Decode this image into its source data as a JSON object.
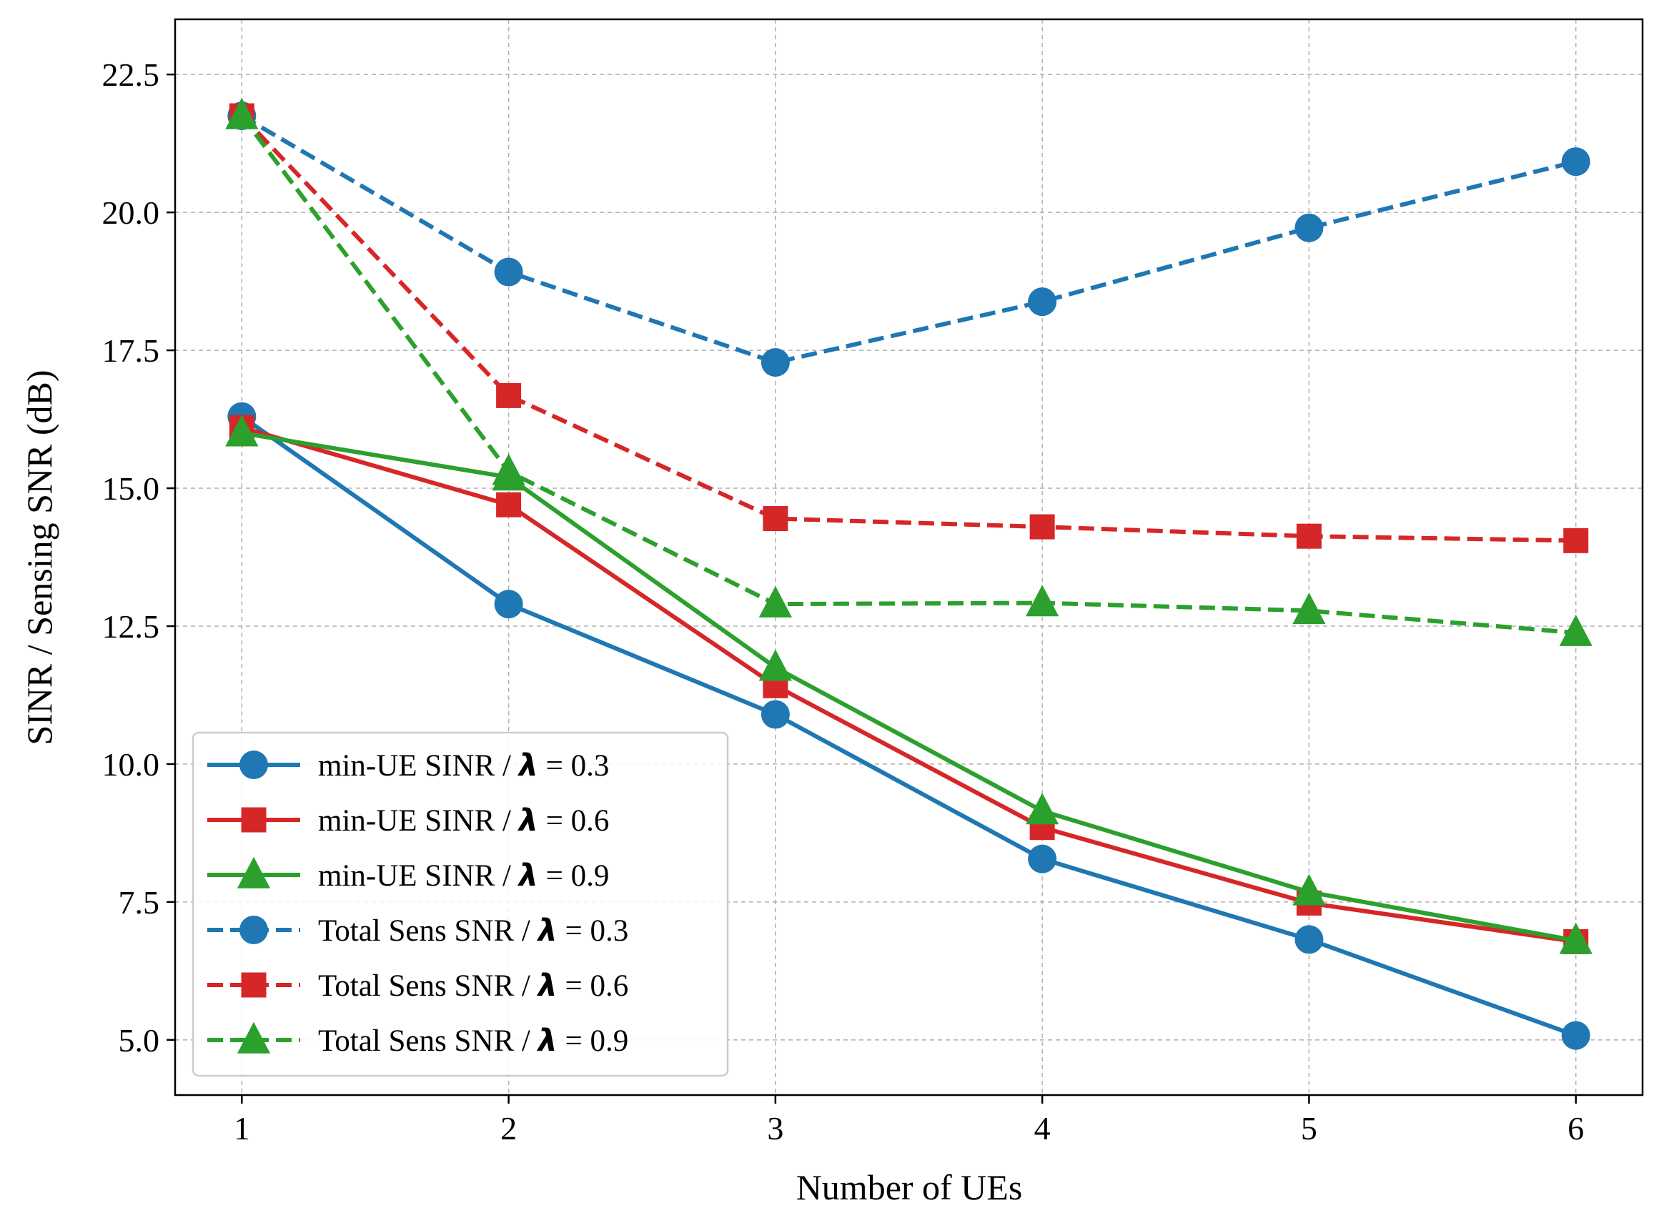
{
  "chart_data": {
    "type": "line",
    "title": "",
    "xlabel": "Number of UEs",
    "ylabel": "SINR / Sensing SNR (dB)",
    "x": [
      1,
      2,
      3,
      4,
      5,
      6
    ],
    "xlim": [
      0.75,
      6.25
    ],
    "ylim": [
      4.0,
      23.5
    ],
    "xticks": [
      1,
      2,
      3,
      4,
      5,
      6
    ],
    "yticks": [
      5.0,
      7.5,
      10.0,
      12.5,
      15.0,
      17.5,
      20.0,
      22.5
    ],
    "grid": true,
    "legend_position": "lower-left",
    "series": [
      {
        "name": "min-UE SINR / λ = 0.3",
        "label_prefix": "min-UE SINR / ",
        "label_suffix": " = 0.3",
        "values": [
          16.3,
          12.9,
          10.9,
          8.28,
          6.82,
          5.08
        ],
        "color": "#1f77b4",
        "marker": "circle",
        "dashed": false
      },
      {
        "name": "min-UE SINR / λ = 0.6",
        "label_prefix": "min-UE SINR / ",
        "label_suffix": " = 0.6",
        "values": [
          16.1,
          14.7,
          11.42,
          8.85,
          7.48,
          6.78
        ],
        "color": "#d62728",
        "marker": "square",
        "dashed": false
      },
      {
        "name": "min-UE SINR / λ = 0.9",
        "label_prefix": "min-UE SINR / ",
        "label_suffix": " = 0.9",
        "values": [
          16.0,
          15.2,
          11.75,
          9.15,
          7.68,
          6.8
        ],
        "color": "#2ca02c",
        "marker": "triangle",
        "dashed": false
      },
      {
        "name": "Total Sens SNR / λ = 0.3",
        "label_prefix": "Total Sens SNR / ",
        "label_suffix": " = 0.3",
        "values": [
          21.75,
          18.92,
          17.28,
          18.38,
          19.72,
          20.92
        ],
        "color": "#1f77b4",
        "marker": "circle",
        "dashed": true
      },
      {
        "name": "Total Sens SNR / λ = 0.6",
        "label_prefix": "Total Sens SNR / ",
        "label_suffix": " = 0.6",
        "values": [
          21.75,
          16.68,
          14.45,
          14.3,
          14.13,
          14.05
        ],
        "color": "#d62728",
        "marker": "square",
        "dashed": true
      },
      {
        "name": "Total Sens SNR / λ = 0.9",
        "label_prefix": "Total Sens SNR / ",
        "label_suffix": " = 0.9",
        "values": [
          21.75,
          15.3,
          12.9,
          12.92,
          12.78,
          12.38
        ],
        "color": "#2ca02c",
        "marker": "triangle",
        "dashed": true
      }
    ],
    "legend_symbol": "λ"
  }
}
